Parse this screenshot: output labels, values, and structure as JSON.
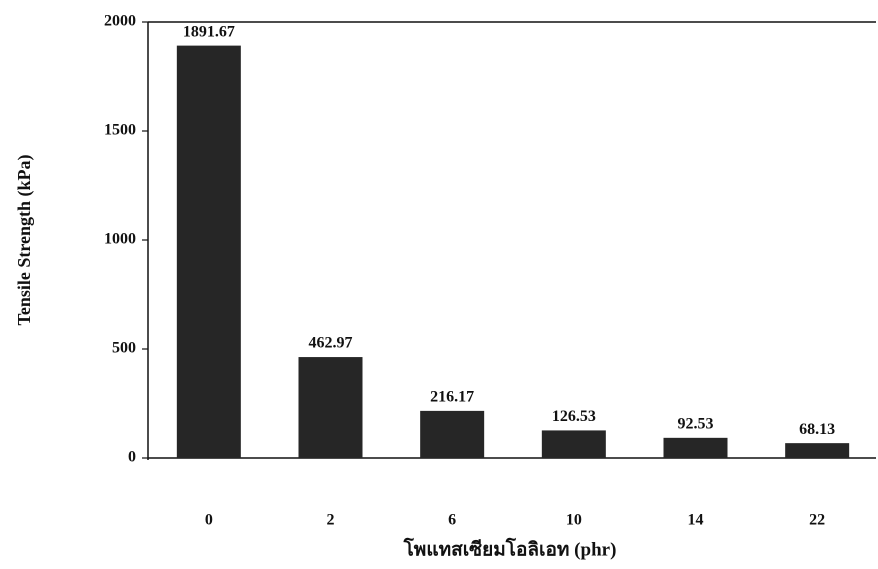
{
  "chart_data": {
    "type": "bar",
    "categories": [
      "0",
      "2",
      "6",
      "10",
      "14",
      "22"
    ],
    "values": [
      1891.67,
      462.97,
      216.17,
      126.53,
      92.53,
      68.13
    ],
    "color": "#262626",
    "xlabel": "โพแทสเซียมโอลิเอท (phr)",
    "ylabel": "Tensile Strength (kPa)",
    "ylim": [
      0,
      2000
    ],
    "yticks": [
      0,
      500,
      1000,
      1500,
      2000
    ]
  }
}
